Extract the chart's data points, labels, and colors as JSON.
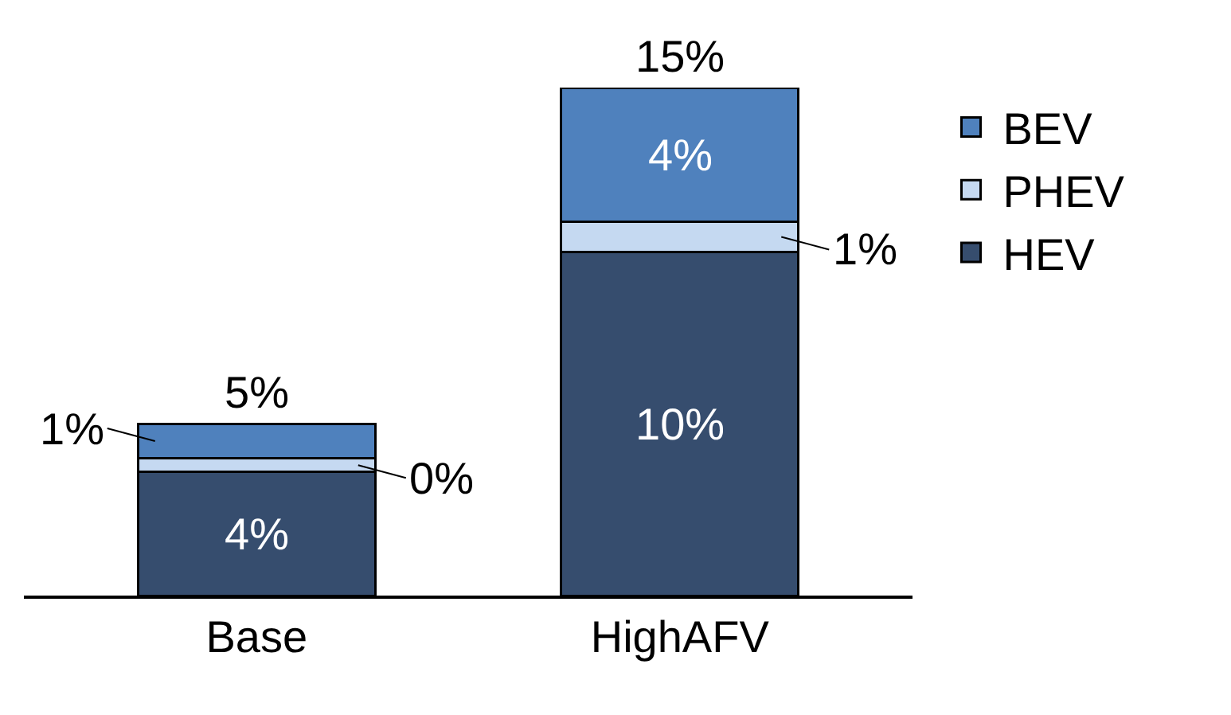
{
  "chart_data": {
    "type": "bar",
    "stacked": true,
    "categories": [
      "Base",
      "HighAFV"
    ],
    "series": [
      {
        "name": "HEV",
        "color": "#364d6e",
        "values": [
          3.6,
          10
        ],
        "value_labels": [
          "4%",
          "10%"
        ]
      },
      {
        "name": "PHEV",
        "color": "#c5d9f1",
        "values": [
          0.4,
          0.9
        ],
        "value_labels": [
          "0%",
          "1%"
        ]
      },
      {
        "name": "BEV",
        "color": "#4f81bd",
        "values": [
          1.0,
          3.9
        ],
        "value_labels": [
          "1%",
          "4%"
        ]
      }
    ],
    "totals": [
      "5%",
      "15%"
    ],
    "legend": "top right"
  }
}
